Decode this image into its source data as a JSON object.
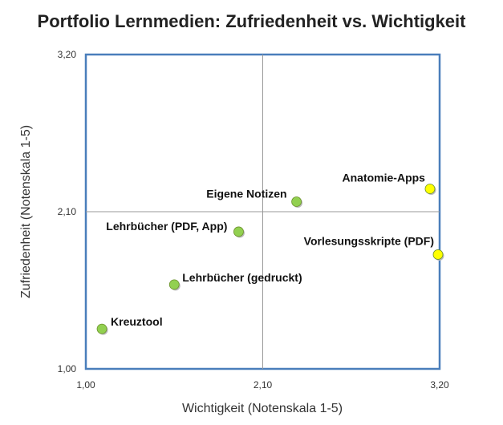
{
  "chart_data": {
    "type": "scatter",
    "title": "Portfolio Lernmedien: Zufriedenheit vs. Wichtigkeit",
    "xlabel": "Wichtigkeit (Notenskala 1-5)",
    "ylabel": "Zufriedenheit (Notenskala 1-5)",
    "xlim": [
      1.0,
      3.2
    ],
    "ylim": [
      1.0,
      3.2
    ],
    "x_ticks": [
      "1,00",
      "2,10",
      "3,20"
    ],
    "y_ticks": [
      "1,00",
      "2,10",
      "3,20"
    ],
    "quadrant_lines": {
      "x": 2.1,
      "y": 2.1
    },
    "grid": false,
    "points": [
      {
        "label": "Kreuztool",
        "x": 1.1,
        "y": 1.28,
        "color": "#92d050"
      },
      {
        "label": "Lehrbücher (gedruckt)",
        "x": 1.55,
        "y": 1.59,
        "color": "#92d050"
      },
      {
        "label": "Lehrbücher (PDF, App)",
        "x": 1.95,
        "y": 1.96,
        "color": "#92d050"
      },
      {
        "label": "Eigene Notizen",
        "x": 2.31,
        "y": 2.17,
        "color": "#92d050"
      },
      {
        "label": "Anatomie-Apps",
        "x": 3.14,
        "y": 2.26,
        "color": "#ffff00"
      },
      {
        "label": "Vorlesungsskripte (PDF)",
        "x": 3.19,
        "y": 1.8,
        "color": "#ffff00"
      }
    ]
  }
}
